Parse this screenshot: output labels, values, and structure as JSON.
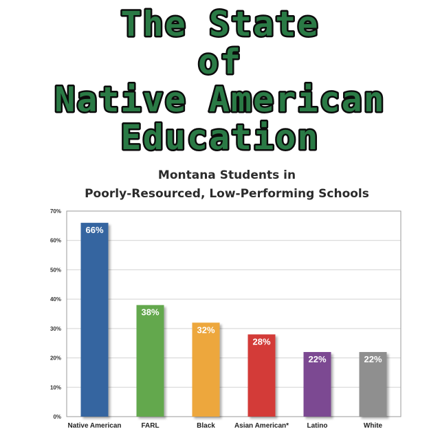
{
  "banner": {
    "lines": [
      "The State",
      "of",
      "Native American",
      "Education"
    ],
    "color": "#2a7a45"
  },
  "chart_data": {
    "type": "bar",
    "title_lines": [
      "Montana Students in",
      "Poorly-Resourced, Low-Performing Schools"
    ],
    "categories": [
      "Native American",
      "FARL",
      "Black",
      "Asian American*",
      "Latino",
      "White"
    ],
    "values": [
      66,
      38,
      32,
      28,
      22,
      22
    ],
    "data_labels": [
      "66%",
      "38%",
      "32%",
      "28%",
      "22%",
      "22%"
    ],
    "colors": [
      "#3565a0",
      "#63a84e",
      "#eda73c",
      "#d33b37",
      "#7c4a92",
      "#8f8f8f"
    ],
    "ylim": [
      0,
      70
    ],
    "yticks": [
      0,
      10,
      20,
      30,
      40,
      50,
      60,
      70
    ],
    "ytick_labels": [
      "0%",
      "10%",
      "20%",
      "30%",
      "40%",
      "50%",
      "60%",
      "70%"
    ],
    "grid": true,
    "xlabel": "",
    "ylabel": ""
  }
}
